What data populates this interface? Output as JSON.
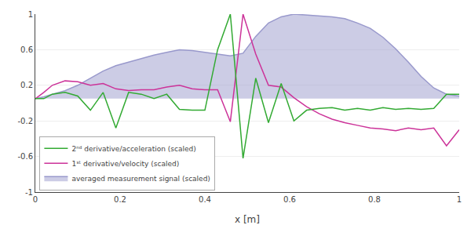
{
  "chart_data": {
    "type": "line",
    "xlabel": "x [m]",
    "x": [
      0.0,
      0.02,
      0.04,
      0.07,
      0.1,
      0.13,
      0.16,
      0.19,
      0.22,
      0.25,
      0.28,
      0.31,
      0.34,
      0.37,
      0.4,
      0.43,
      0.46,
      0.49,
      0.52,
      0.55,
      0.58,
      0.61,
      0.64,
      0.67,
      0.7,
      0.73,
      0.76,
      0.79,
      0.82,
      0.85,
      0.88,
      0.91,
      0.94,
      0.97,
      1.0
    ],
    "xlim": [
      0,
      1
    ],
    "ylim": [
      -1,
      1
    ],
    "xticks": [
      0,
      0.2,
      0.4,
      0.6,
      0.8,
      1
    ],
    "yticks": [
      -1,
      -0.6,
      -0.2,
      0.2,
      0.6,
      1
    ],
    "grid": true,
    "legend": "lower left",
    "series": [
      {
        "name": "averaged measurement signal (scaled)",
        "type": "area",
        "color": "#9999cc",
        "fill_base": 0.05,
        "values": [
          0.05,
          0.07,
          0.1,
          0.14,
          0.2,
          0.28,
          0.36,
          0.42,
          0.46,
          0.5,
          0.54,
          0.57,
          0.6,
          0.59,
          0.57,
          0.55,
          0.53,
          0.56,
          0.75,
          0.9,
          0.97,
          1.0,
          0.99,
          0.98,
          0.97,
          0.95,
          0.9,
          0.84,
          0.74,
          0.61,
          0.46,
          0.3,
          0.17,
          0.1,
          0.08
        ]
      },
      {
        "name": "1ˢᵗ derivative/velocity (scaled)",
        "type": "line",
        "color": "#cc3399",
        "values": [
          0.05,
          0.12,
          0.2,
          0.25,
          0.24,
          0.2,
          0.22,
          0.16,
          0.14,
          0.15,
          0.15,
          0.18,
          0.2,
          0.16,
          0.15,
          0.15,
          -0.21,
          1.0,
          0.55,
          0.2,
          0.18,
          0.06,
          -0.04,
          -0.12,
          -0.18,
          -0.22,
          -0.25,
          -0.28,
          -0.29,
          -0.31,
          -0.28,
          -0.3,
          -0.28,
          -0.48,
          -0.3
        ]
      },
      {
        "name": "2ⁿᵈ derivative/acceleration (scaled)",
        "type": "line",
        "color": "#33aa33",
        "values": [
          0.05,
          0.05,
          0.1,
          0.12,
          0.08,
          -0.08,
          0.12,
          -0.28,
          0.12,
          0.1,
          0.05,
          0.1,
          -0.07,
          -0.08,
          -0.08,
          0.6,
          1.0,
          -0.62,
          0.28,
          -0.22,
          0.22,
          -0.2,
          -0.08,
          -0.06,
          -0.05,
          -0.08,
          -0.06,
          -0.08,
          -0.05,
          -0.07,
          -0.06,
          -0.07,
          -0.06,
          0.1,
          0.1
        ]
      }
    ]
  }
}
